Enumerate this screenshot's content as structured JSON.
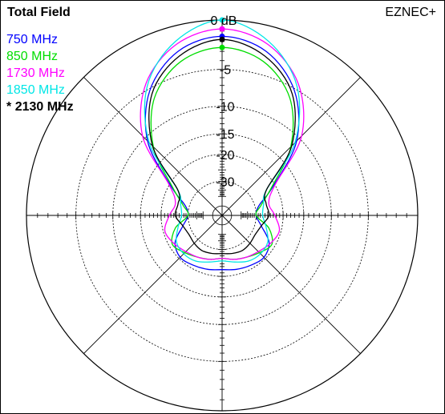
{
  "title": "Total Field",
  "brand": "EZNEC+",
  "active_marker": "*",
  "chart_data": {
    "type": "line",
    "title": "Total Field",
    "projection": "polar",
    "radial_scale": "log (ARRL)",
    "radial_unit": "dB",
    "radial_ticks": [
      {
        "value": 0,
        "label": "0 dB"
      },
      {
        "value": -5,
        "label": "-5"
      },
      {
        "value": -10,
        "label": "-10"
      },
      {
        "value": -15,
        "label": "-15"
      },
      {
        "value": -20,
        "label": "-20"
      },
      {
        "value": -30,
        "label": "-30"
      }
    ],
    "radial_range_db": [
      -40,
      0
    ],
    "angle_spokes_deg": [
      0,
      45,
      90,
      135,
      180,
      225,
      270,
      315
    ],
    "grid": true,
    "legend_position": "top-left",
    "angles_deg": [
      0,
      15,
      30,
      45,
      60,
      75,
      90,
      105,
      120,
      135,
      150,
      165,
      180,
      195,
      210,
      225,
      240,
      255,
      270,
      285,
      300,
      315,
      330,
      345
    ],
    "series": [
      {
        "name": "750 MHz",
        "color": "#0000ff",
        "active": false,
        "values_db": [
          -1.5,
          -2.4,
          -5.2,
          -10.6,
          -20.5,
          -28,
          -30,
          -27,
          -22,
          -20.5,
          -21,
          -21.5,
          -22,
          -21.5,
          -21,
          -20.5,
          -22,
          -27,
          -30,
          -28,
          -20.5,
          -10.6,
          -5.2,
          -2.4
        ]
      },
      {
        "name": "850 MHz",
        "color": "#00dd00",
        "active": false,
        "values_db": [
          -2.6,
          -3.5,
          -6.3,
          -12,
          -21,
          -27,
          -30,
          -24,
          -21,
          -22.5,
          -24,
          -25,
          -26,
          -25,
          -24,
          -22.5,
          -21,
          -24,
          -30,
          -27,
          -21,
          -12,
          -6.3,
          -3.5
        ]
      },
      {
        "name": "1730 MHz",
        "color": "#ff00ff",
        "active": false,
        "values_db": [
          -0.8,
          -1.7,
          -4.3,
          -9.5,
          -20,
          -24,
          -22.5,
          -20.5,
          -21.5,
          -23,
          -24,
          -25,
          -26,
          -25,
          -24,
          -23,
          -21.5,
          -20.5,
          -22.5,
          -24,
          -20,
          -9.5,
          -4.3,
          -1.7
        ]
      },
      {
        "name": "1850 MHz",
        "color": "#00e6e6",
        "active": false,
        "values_db": [
          0,
          -1.4,
          -4.6,
          -11,
          -23,
          -26,
          -27,
          -25,
          -22.5,
          -22,
          -22.5,
          -24,
          -25,
          -24,
          -22.5,
          -22,
          -22.5,
          -25,
          -27,
          -26,
          -23,
          -11,
          -4.6,
          -1.4
        ]
      },
      {
        "name": "2130 MHz",
        "color": "#000000",
        "active": true,
        "values_db": [
          -1.8,
          -2.9,
          -5.7,
          -11.8,
          -23,
          -25,
          -24.5,
          -27,
          -28,
          -27.5,
          -27,
          -27.5,
          -28,
          -27.5,
          -27,
          -27.5,
          -28,
          -27,
          -24.5,
          -25,
          -23,
          -11.8,
          -5.7,
          -2.9
        ]
      }
    ]
  }
}
